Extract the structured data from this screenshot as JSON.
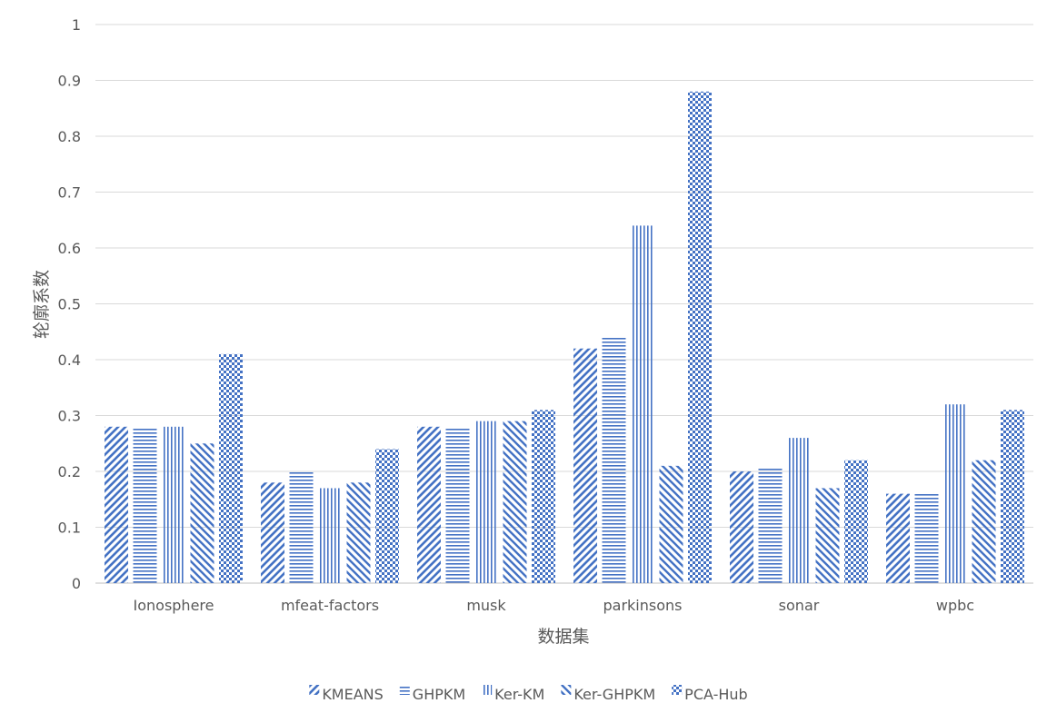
{
  "chart_data": {
    "type": "bar",
    "categories": [
      "Ionosphere",
      "mfeat-factors",
      "musk",
      "parkinsons",
      "sonar",
      "wpbc"
    ],
    "series": [
      {
        "name": "KMEANS",
        "values": [
          0.28,
          0.18,
          0.28,
          0.42,
          0.2,
          0.16
        ],
        "pattern": "diag-up"
      },
      {
        "name": "GHPKM",
        "values": [
          0.278,
          0.2,
          0.278,
          0.44,
          0.205,
          0.16
        ],
        "pattern": "horizontal"
      },
      {
        "name": "Ker-KM",
        "values": [
          0.28,
          0.17,
          0.29,
          0.64,
          0.26,
          0.32
        ],
        "pattern": "vertical"
      },
      {
        "name": "Ker-GHPKM",
        "values": [
          0.25,
          0.18,
          0.29,
          0.21,
          0.17,
          0.22
        ],
        "pattern": "diag-down"
      },
      {
        "name": "PCA-Hub",
        "values": [
          0.41,
          0.24,
          0.31,
          0.88,
          0.22,
          0.31
        ],
        "pattern": "checker"
      }
    ],
    "xlabel": "数据集",
    "ylabel": "轮廓系数",
    "ylim": [
      0,
      1
    ],
    "yticks": [
      "0",
      "0.1",
      "0.2",
      "0.3",
      "0.4",
      "0.5",
      "0.6",
      "0.7",
      "0.8",
      "0.9",
      "1"
    ],
    "grid": true,
    "legend": "bottom",
    "colors": {
      "bar": "#4472C4",
      "grid": "#D9D9D9",
      "text": "#595959"
    }
  }
}
